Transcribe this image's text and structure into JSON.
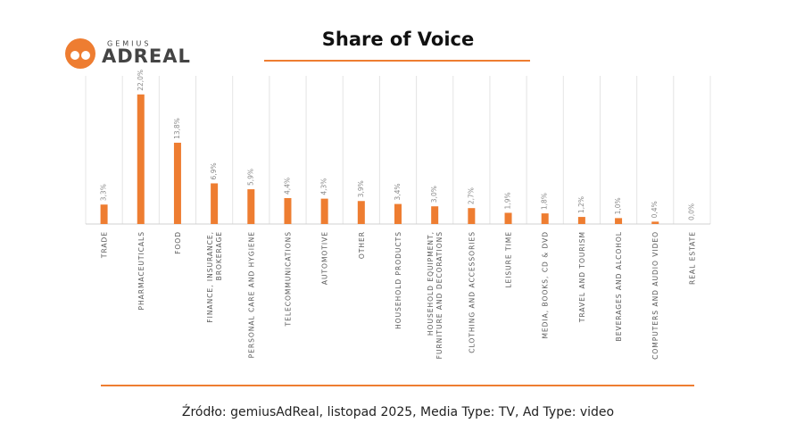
{
  "logo": {
    "brand": "GEMIUS",
    "product": "ADREAL"
  },
  "chart_data": {
    "type": "bar",
    "title": "Share of Voice",
    "categories": [
      "TRADE",
      "PHARMACEUTICALS",
      "FOOD",
      "FINANCE, INSURANCE,\nBROKERAGE",
      "PERSONAL CARE AND HYGIENE",
      "TELECOMMUNICATIONS",
      "AUTOMOTIVE",
      "OTHER",
      "HOUSEHOLD PRODUCTS",
      "HOUSEHOLD EQUIPMENT,\nFURNITURE AND DECORATIONS",
      "CLOTHING AND ACCESSORIES",
      "LEISURE TIME",
      "MEDIA, BOOKS, CD & DVD",
      "TRAVEL AND TOURISM",
      "BEVERAGES AND ALCOHOL",
      "COMPUTERS AND AUDIO VIDEO",
      "REAL ESTATE"
    ],
    "values": [
      3.3,
      22.0,
      13.8,
      6.9,
      5.9,
      4.4,
      4.3,
      3.9,
      3.4,
      3.0,
      2.7,
      1.9,
      1.8,
      1.2,
      1.0,
      0.4,
      0.0
    ],
    "value_labels": [
      "3,3%",
      "22,0%",
      "13,8%",
      "6,9%",
      "5,9%",
      "4,4%",
      "4,3%",
      "3,9%",
      "3,4%",
      "3,0%",
      "2,7%",
      "1,9%",
      "1,8%",
      "1,2%",
      "1,0%",
      "0,4%",
      "0,0%"
    ],
    "color": "#ee7d31",
    "ylim": [
      0,
      24
    ],
    "grid": true,
    "source": "Źródło: gemiusAdReal, listopad 2025, Media Type: TV, Ad Type: video"
  }
}
